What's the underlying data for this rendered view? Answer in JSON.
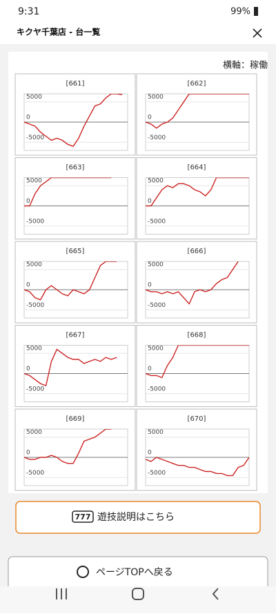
{
  "status_bar": {
    "time": "9:31",
    "battery": "99%"
  },
  "header": {
    "title": "キクヤ千葉店 - 台一覧"
  },
  "note": "横軸：稼働",
  "chart_data": [
    {
      "type": "line",
      "title": "[661]",
      "color": "#cc2222",
      "ylim": [
        -7000,
        7000
      ],
      "yticks": [
        5000,
        0,
        -5000
      ],
      "values": [
        0,
        -500,
        -1000,
        -2500,
        -3500,
        -4500,
        -4000,
        -4500,
        -5500,
        -6000,
        -4000,
        -1000,
        1500,
        4000,
        4500,
        6000,
        7000,
        7000,
        6800,
        null
      ]
    },
    {
      "type": "line",
      "title": "[662]",
      "color": "#cc2222",
      "ylim": [
        -7000,
        7000
      ],
      "yticks": [
        5000,
        0,
        -5000
      ],
      "values": [
        0,
        -500,
        -1500,
        -500,
        0,
        1000,
        3000,
        5000,
        7000,
        7000,
        7000,
        7000,
        7000,
        7000,
        7000,
        7000,
        7000,
        7000,
        7000,
        7000
      ]
    },
    {
      "type": "line",
      "title": "[663]",
      "color": "#cc2222",
      "ylim": [
        -7000,
        7000
      ],
      "yticks": [
        5000,
        0,
        -5000
      ],
      "values": [
        0,
        0,
        3000,
        5000,
        6000,
        7000,
        7000,
        7000,
        7000,
        7000,
        7000,
        7000,
        7000,
        7000,
        7000,
        7000,
        7000,
        null,
        null,
        null
      ]
    },
    {
      "type": "line",
      "title": "[664]",
      "color": "#cc2222",
      "ylim": [
        -7000,
        7000
      ],
      "yticks": [
        5000,
        0,
        -5000
      ],
      "values": [
        0,
        0,
        2000,
        4000,
        5000,
        4500,
        5500,
        5500,
        5000,
        4000,
        3500,
        2500,
        4000,
        7000,
        7000,
        7000,
        7000,
        7000,
        7000,
        7000
      ]
    },
    {
      "type": "line",
      "title": "[665]",
      "color": "#cc2222",
      "ylim": [
        -7000,
        7000
      ],
      "yticks": [
        5000,
        0,
        -5000
      ],
      "values": [
        0,
        -500,
        -2000,
        -2500,
        0,
        1000,
        0,
        -1000,
        -1500,
        0,
        -500,
        -1000,
        0,
        3000,
        6000,
        7000,
        7000,
        7000,
        null,
        null
      ]
    },
    {
      "type": "line",
      "title": "[666]",
      "color": "#cc2222",
      "ylim": [
        -7000,
        7000
      ],
      "yticks": [
        5000,
        0,
        -5000
      ],
      "values": [
        0,
        -500,
        -500,
        -1000,
        -500,
        -1000,
        -500,
        -2000,
        -3500,
        -500,
        0,
        -500,
        0,
        1500,
        2500,
        3000,
        5000,
        7000,
        null,
        null
      ]
    },
    {
      "type": "line",
      "title": "[667]",
      "color": "#cc2222",
      "ylim": [
        -7000,
        7000
      ],
      "yticks": [
        5000,
        0,
        -5000
      ],
      "values": [
        0,
        -500,
        -1500,
        -2500,
        -3000,
        3000,
        6000,
        5000,
        4000,
        3500,
        3500,
        2500,
        3000,
        3500,
        3000,
        4000,
        3500,
        4000,
        null,
        null
      ]
    },
    {
      "type": "line",
      "title": "[668]",
      "color": "#cc2222",
      "ylim": [
        -7000,
        7000
      ],
      "yticks": [
        5000,
        0,
        -5000
      ],
      "values": [
        0,
        -500,
        -500,
        -1000,
        2000,
        4000,
        7000,
        7000,
        7000,
        7000,
        7000,
        7000,
        7000,
        7000,
        7000,
        7000,
        7000,
        7000,
        7000,
        7000
      ]
    },
    {
      "type": "line",
      "title": "[669]",
      "color": "#cc2222",
      "ylim": [
        -7000,
        7000
      ],
      "yticks": [
        5000,
        0,
        -5000
      ],
      "values": [
        0,
        -500,
        -500,
        0,
        0,
        500,
        0,
        -1000,
        -1500,
        -1500,
        1000,
        4000,
        4500,
        5000,
        6000,
        7000,
        7000,
        null,
        null,
        null
      ]
    },
    {
      "type": "line",
      "title": "[670]",
      "color": "#cc2222",
      "ylim": [
        -7000,
        7000
      ],
      "yticks": [
        5000,
        0,
        -5000
      ],
      "values": [
        -500,
        -1000,
        0,
        -500,
        -1000,
        -1500,
        -2000,
        -2000,
        -2500,
        -2500,
        -3000,
        -3500,
        -3500,
        -4000,
        -4000,
        -4500,
        -4500,
        -2500,
        -2000,
        0
      ]
    }
  ],
  "buttons": {
    "guide_icon": "777",
    "guide": "遊技説明はこちら",
    "top": "ページTOPへ戻る"
  }
}
